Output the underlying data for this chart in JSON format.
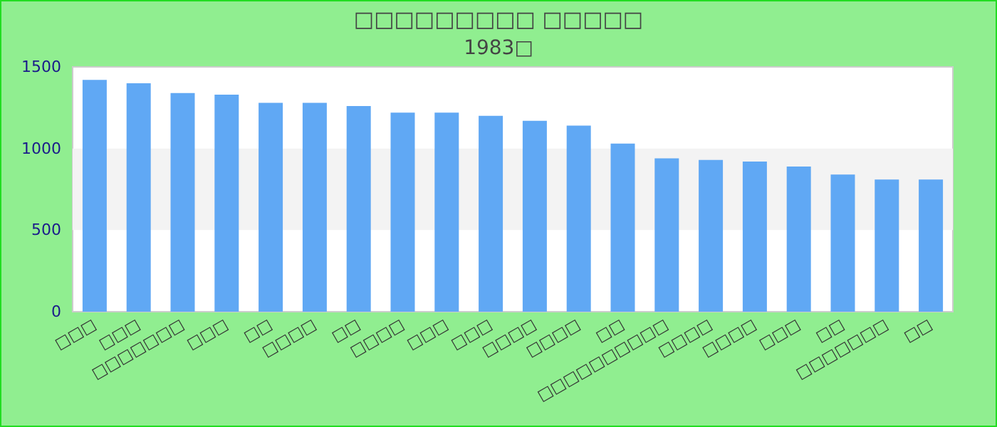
{
  "chart_data": {
    "type": "bar",
    "title": "□□□□□□□□□ □□□□□",
    "subtitle": "1983□",
    "categories": [
      "□□□",
      "□□□",
      "□□□□□□□",
      "□□□",
      "□□",
      "□□□□",
      "□□",
      "□□□□",
      "□□□",
      "□□□",
      "□□□□",
      "□□□□",
      "□□",
      "□□□□□□□□□□",
      "□□□□",
      "□□□□",
      "□□□",
      "□□",
      "□□□□□□□",
      "□□"
    ],
    "values": [
      1420,
      1400,
      1340,
      1330,
      1280,
      1280,
      1260,
      1220,
      1220,
      1200,
      1170,
      1140,
      1030,
      940,
      930,
      920,
      890,
      840,
      810,
      810
    ],
    "color": "#60a8f4",
    "ylim": [
      0,
      1500
    ],
    "yticks": [
      0,
      500,
      1000,
      1500
    ],
    "bands": [
      {
        "axis": "y",
        "from": 500,
        "to": 1000,
        "color": "#f3f3f3"
      }
    ]
  }
}
